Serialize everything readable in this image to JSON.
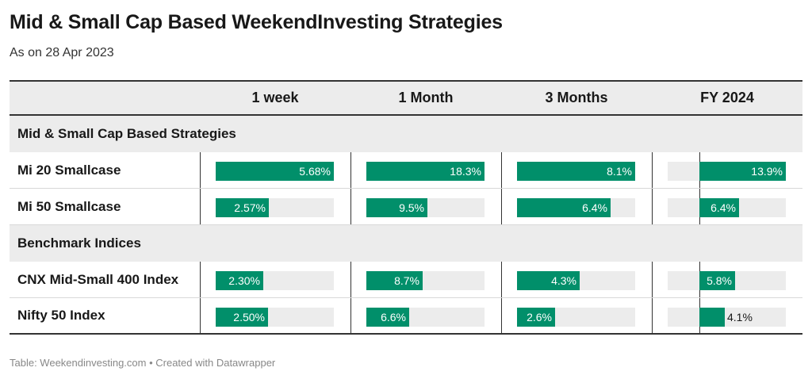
{
  "title": "Mid & Small Cap Based WeekendInvesting Strategies",
  "subtitle": "As on 28 Apr 2023",
  "footer": "Table: Weekendinvesting.com • Created with Datawrapper",
  "colors": {
    "bar": "#018f6a",
    "track": "#ececec",
    "header_bg": "#ececec"
  },
  "chart_data": {
    "type": "table",
    "columns": [
      "1 week",
      "1 Month",
      "3 Months",
      "FY 2024"
    ],
    "column_max": [
      5.68,
      18.3,
      8.1,
      13.9
    ],
    "groups": [
      {
        "label": "Mid & Small Cap Based Strategies",
        "rows": [
          {
            "label": "Mi 20 Smallcase",
            "values": [
              5.68,
              18.3,
              8.1,
              13.9
            ],
            "display": [
              "5.68%",
              "18.3%",
              "8.1%",
              "13.9%"
            ]
          },
          {
            "label": "Mi 50 Smallcase",
            "values": [
              2.57,
              9.5,
              6.4,
              6.4
            ],
            "display": [
              "2.57%",
              "9.5%",
              "6.4%",
              "6.4%"
            ]
          }
        ]
      },
      {
        "label": "Benchmark Indices",
        "rows": [
          {
            "label": "CNX Mid-Small 400 Index",
            "values": [
              2.3,
              8.7,
              4.3,
              5.8
            ],
            "display": [
              "2.30%",
              "8.7%",
              "4.3%",
              "5.8%"
            ]
          },
          {
            "label": "Nifty 50 Index",
            "values": [
              2.5,
              6.6,
              2.6,
              4.1
            ],
            "display": [
              "2.50%",
              "6.6%",
              "2.6%",
              "4.1%"
            ]
          }
        ]
      }
    ]
  }
}
